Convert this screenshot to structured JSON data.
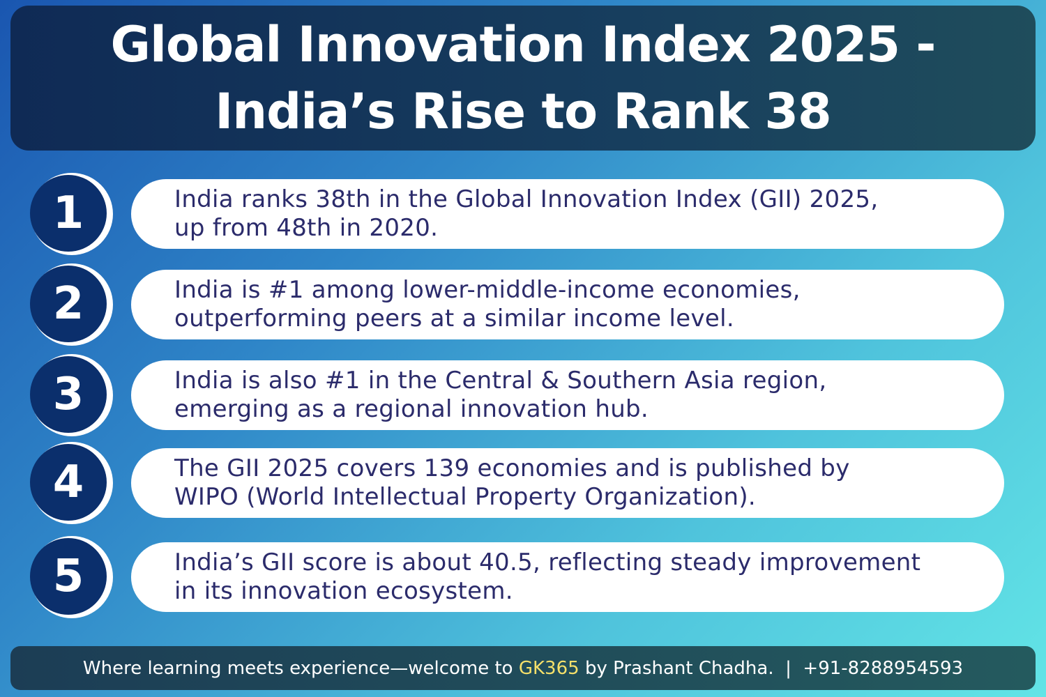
{
  "title": {
    "line1": "Global Innovation Index 2025 -",
    "line2": "India’s Rise to Rank 38"
  },
  "items": [
    {
      "number": "1",
      "line1": "India ranks 38th in the Global Innovation Index (GII) 2025,",
      "line2": "up from 48th in 2020."
    },
    {
      "number": "2",
      "line1": "India is #1 among lower-middle-income economies,",
      "line2": "outperforming peers at a similar income level."
    },
    {
      "number": "3",
      "line1": "India is also #1 in the Central & Southern Asia region,",
      "line2": "emerging as a regional innovation hub."
    },
    {
      "number": "4",
      "line1": "The GII 2025 covers 139 economies and is published by",
      "line2": "WIPO (World Intellectual Property Organization)."
    },
    {
      "number": "5",
      "line1": "India’s GII score is about 40.5, reflecting steady improvement",
      "line2": "in its innovation ecosystem."
    }
  ],
  "footer": {
    "prefix": "Where learning meets experience—welcome to ",
    "brand": "GK365",
    "suffix": " by Prashant Chadha.  |  +91-8288954593"
  },
  "colors": {
    "circle": "#0b2f6c",
    "text": "#2b2b6b",
    "brand_highlight": "#f5e06a"
  }
}
